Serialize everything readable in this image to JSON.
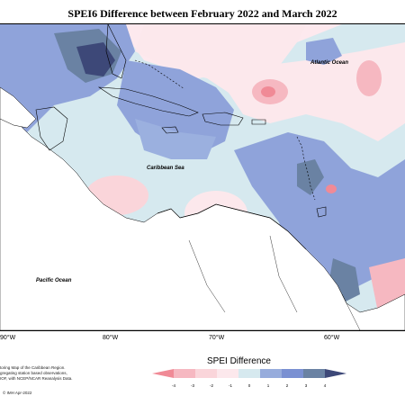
{
  "title": "SPEI6 Difference between February 2022 and March 2022",
  "ocean_labels": {
    "atlantic": "Atlantic Ocean",
    "caribbean": "Caribbean Sea",
    "pacific": "Pacific Ocean"
  },
  "longitude_ticks": [
    "90°W",
    "80°W",
    "70°W",
    "60°W"
  ],
  "credit_lines": [
    "toring Map of the Caribbean Region.",
    "gregating station based observations,",
    "IOF, with NCEP/NCAR Reanalysis Data."
  ],
  "copyright": "© IMH Apr-2022",
  "legend": {
    "title": "SPEI Difference",
    "tick_labels": [
      "-4",
      "-3",
      "-2",
      "-1",
      "0",
      "1",
      "2",
      "3",
      "4"
    ],
    "colors": [
      "#f08a96",
      "#f6b8c1",
      "#fad5da",
      "#fce8ec",
      "#d6e9ef",
      "#97acdc",
      "#7a90d2",
      "#6a82a3",
      "#3d4878"
    ]
  }
}
